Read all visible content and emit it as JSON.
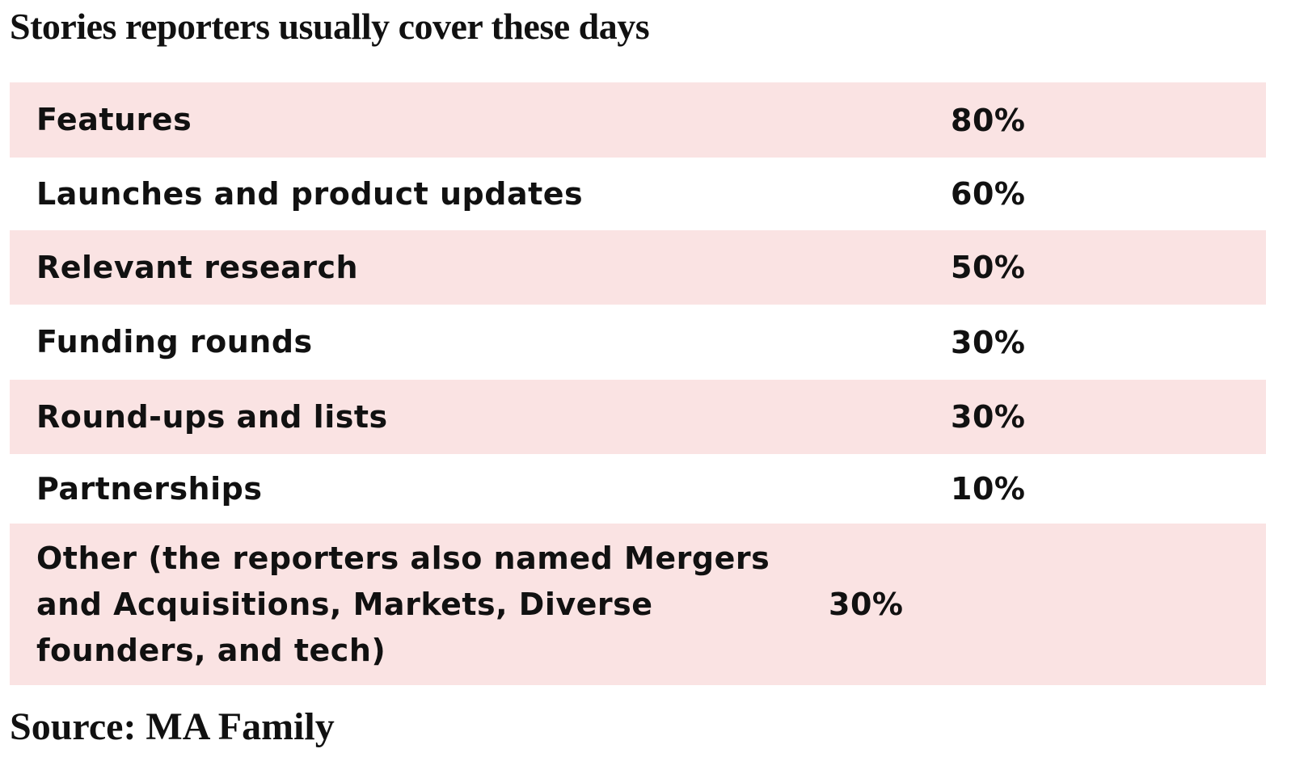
{
  "header": {
    "title": "Stories reporters usually cover these days"
  },
  "table": {
    "rows": [
      [
        "Features",
        "80%"
      ],
      [
        "Launches and product updates",
        "60%"
      ],
      [
        "Relevant research",
        "50%"
      ],
      [
        "Funding rounds",
        "30%"
      ],
      [
        "Round-ups and lists",
        "30%"
      ],
      [
        "Partnerships",
        "10%"
      ],
      [
        "Other (the reporters also named Mergers and Acquisitions, Markets, Diverse founders, and tech)",
        "30%"
      ]
    ]
  },
  "footer": {
    "source": "Source: MA Family"
  }
}
